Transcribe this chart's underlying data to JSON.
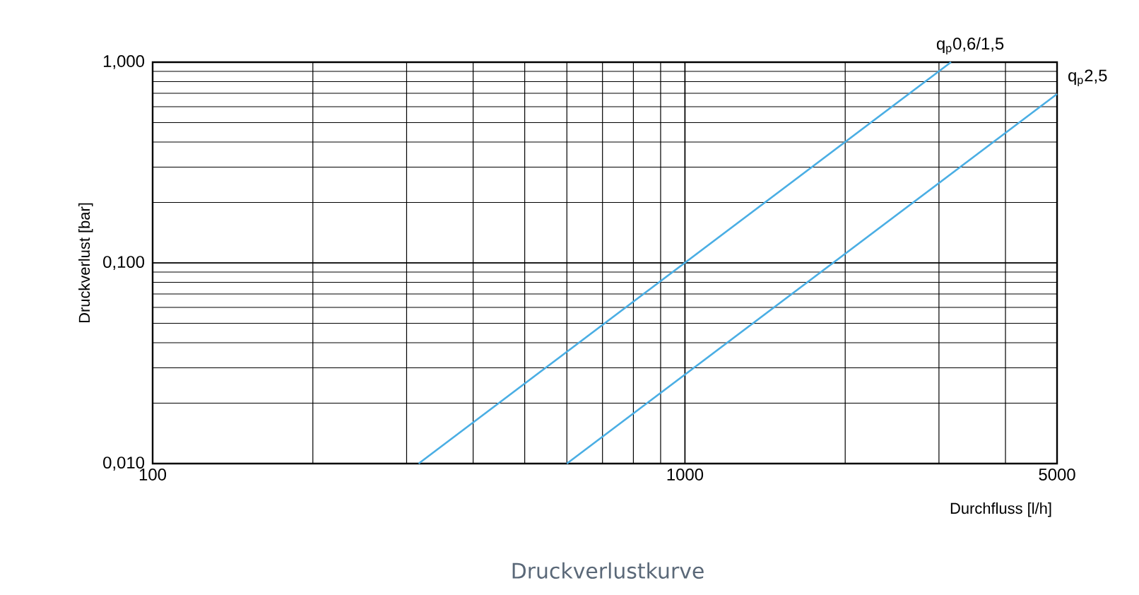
{
  "chart_data": {
    "type": "line",
    "xlabel": "Durchfluss [l/h]",
    "ylabel": "Druckverlust [bar]",
    "log": "xy",
    "grid": true,
    "xlim": [
      100,
      5000
    ],
    "ylim": [
      0.01,
      1
    ],
    "xticks": [
      100,
      1000,
      5000
    ],
    "yticks": [
      {
        "value": 0.01,
        "label": "0,010"
      },
      {
        "value": 0.1,
        "label": "0,100"
      },
      {
        "value": 1,
        "label": "1,000"
      }
    ],
    "series": [
      {
        "name": "q$_{p}$0,6/1,5",
        "color": "#4aaee4",
        "x": [
          316,
          3160
        ],
        "values": [
          0.01,
          1
        ]
      },
      {
        "name": "q$_{p}$2,5",
        "color": "#4aaee4",
        "x": [
          600,
          5000
        ],
        "values": [
          0.01,
          0.694
        ]
      }
    ],
    "annotations": [
      "Druckverlustkurve"
    ]
  }
}
